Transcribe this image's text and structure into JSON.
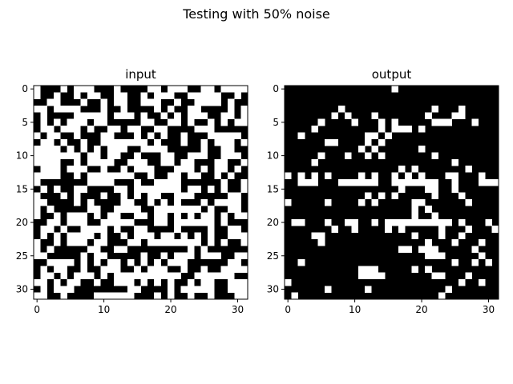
{
  "figure": {
    "suptitle": "Testing with 50% noise"
  },
  "chart_data": [
    {
      "type": "heatmap",
      "title": "input",
      "rows": 32,
      "cols": 32,
      "colormap": "gray",
      "value_colors": {
        "0": "#000000",
        "1": "#ffffff"
      },
      "xlim": [
        -0.5,
        31.5
      ],
      "ylim": [
        31.5,
        -0.5
      ],
      "xticks": [
        0,
        10,
        20,
        30
      ],
      "yticks": [
        0,
        5,
        10,
        15,
        20,
        25,
        30
      ],
      "grid": false,
      "seed": 7,
      "fill_fraction": 0.5
    },
    {
      "type": "heatmap",
      "title": "output",
      "rows": 32,
      "cols": 32,
      "colormap": "gray",
      "value_colors": {
        "0": "#000000",
        "1": "#ffffff"
      },
      "xlim": [
        -0.5,
        31.5
      ],
      "ylim": [
        31.5,
        -0.5
      ],
      "xticks": [
        0,
        10,
        20,
        30
      ],
      "yticks": [
        0,
        5,
        10,
        15,
        20,
        25,
        30
      ],
      "grid": false,
      "white_cells": [
        [
          0,
          16
        ],
        [
          3,
          8
        ],
        [
          3,
          22
        ],
        [
          3,
          26
        ],
        [
          4,
          7
        ],
        [
          4,
          9
        ],
        [
          4,
          13
        ],
        [
          4,
          21
        ],
        [
          4,
          25
        ],
        [
          4,
          26
        ],
        [
          5,
          5
        ],
        [
          5,
          10
        ],
        [
          5,
          14
        ],
        [
          5,
          16
        ],
        [
          5,
          22
        ],
        [
          5,
          23
        ],
        [
          5,
          24
        ],
        [
          5,
          28
        ],
        [
          6,
          4
        ],
        [
          6,
          14
        ],
        [
          6,
          16
        ],
        [
          6,
          17
        ],
        [
          6,
          18
        ],
        [
          6,
          20
        ],
        [
          7,
          2
        ],
        [
          7,
          12
        ],
        [
          7,
          13
        ],
        [
          7,
          15
        ],
        [
          8,
          6
        ],
        [
          8,
          7
        ],
        [
          8,
          12
        ],
        [
          8,
          14
        ],
        [
          9,
          11
        ],
        [
          9,
          13
        ],
        [
          9,
          20
        ],
        [
          10,
          5
        ],
        [
          10,
          9
        ],
        [
          10,
          12
        ],
        [
          10,
          14
        ],
        [
          10,
          22
        ],
        [
          11,
          4
        ],
        [
          11,
          25
        ],
        [
          12,
          17
        ],
        [
          12,
          19
        ],
        [
          12,
          27
        ],
        [
          13,
          0
        ],
        [
          13,
          2
        ],
        [
          13,
          4
        ],
        [
          13,
          6
        ],
        [
          13,
          11
        ],
        [
          13,
          13
        ],
        [
          13,
          16
        ],
        [
          13,
          18
        ],
        [
          13,
          20
        ],
        [
          13,
          24
        ],
        [
          13,
          25
        ],
        [
          13,
          29
        ],
        [
          14,
          2
        ],
        [
          14,
          3
        ],
        [
          14,
          4
        ],
        [
          14,
          8
        ],
        [
          14,
          9
        ],
        [
          14,
          10
        ],
        [
          14,
          11
        ],
        [
          14,
          12
        ],
        [
          14,
          13
        ],
        [
          14,
          16
        ],
        [
          14,
          17
        ],
        [
          14,
          18
        ],
        [
          14,
          19
        ],
        [
          14,
          20
        ],
        [
          14,
          21
        ],
        [
          14,
          22
        ],
        [
          14,
          25
        ],
        [
          14,
          29
        ],
        [
          14,
          30
        ],
        [
          14,
          31
        ],
        [
          15,
          17
        ],
        [
          15,
          21
        ],
        [
          15,
          22
        ],
        [
          15,
          25
        ],
        [
          16,
          12
        ],
        [
          16,
          14
        ],
        [
          16,
          16
        ],
        [
          16,
          22
        ],
        [
          16,
          26
        ],
        [
          17,
          0
        ],
        [
          17,
          6
        ],
        [
          17,
          11
        ],
        [
          17,
          13
        ],
        [
          17,
          19
        ],
        [
          17,
          20
        ],
        [
          17,
          27
        ],
        [
          18,
          19
        ],
        [
          18,
          21
        ],
        [
          19,
          19
        ],
        [
          19,
          22
        ],
        [
          20,
          1
        ],
        [
          20,
          2
        ],
        [
          20,
          6
        ],
        [
          20,
          9
        ],
        [
          20,
          10
        ],
        [
          20,
          13
        ],
        [
          20,
          15
        ],
        [
          20,
          16
        ],
        [
          20,
          17
        ],
        [
          20,
          18
        ],
        [
          20,
          19
        ],
        [
          20,
          20
        ],
        [
          20,
          21
        ],
        [
          20,
          22
        ],
        [
          20,
          23
        ],
        [
          20,
          24
        ],
        [
          20,
          26
        ],
        [
          20,
          30
        ],
        [
          21,
          7
        ],
        [
          21,
          10
        ],
        [
          21,
          15
        ],
        [
          21,
          17
        ],
        [
          21,
          23
        ],
        [
          21,
          27
        ],
        [
          21,
          31
        ],
        [
          22,
          4
        ],
        [
          22,
          5
        ],
        [
          22,
          19
        ],
        [
          22,
          23
        ],
        [
          22,
          26
        ],
        [
          23,
          5
        ],
        [
          23,
          21
        ],
        [
          23,
          25
        ],
        [
          23,
          29
        ],
        [
          24,
          17
        ],
        [
          24,
          18
        ],
        [
          24,
          20
        ],
        [
          24,
          21
        ],
        [
          24,
          22
        ],
        [
          24,
          28
        ],
        [
          25,
          21
        ],
        [
          25,
          22
        ],
        [
          25,
          23
        ],
        [
          25,
          29
        ],
        [
          26,
          2
        ],
        [
          26,
          25
        ],
        [
          26,
          28
        ],
        [
          26,
          30
        ],
        [
          27,
          11
        ],
        [
          27,
          12
        ],
        [
          27,
          13
        ],
        [
          27,
          19
        ],
        [
          27,
          21
        ],
        [
          28,
          11
        ],
        [
          28,
          12
        ],
        [
          28,
          13
        ],
        [
          28,
          14
        ],
        [
          28,
          22
        ],
        [
          28,
          23
        ],
        [
          28,
          27
        ],
        [
          29,
          0
        ],
        [
          29,
          26
        ],
        [
          29,
          29
        ],
        [
          30,
          6
        ],
        [
          30,
          12
        ],
        [
          30,
          24
        ],
        [
          31,
          1
        ],
        [
          31,
          23
        ]
      ]
    }
  ]
}
